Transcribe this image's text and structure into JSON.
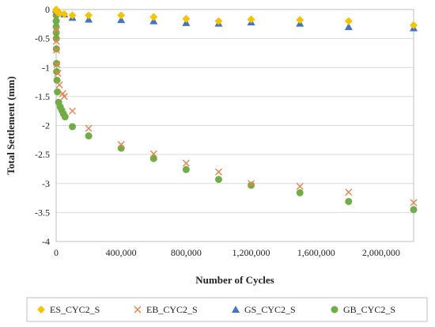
{
  "chart_data": {
    "type": "scatter",
    "xlabel": "Number of Cycles",
    "ylabel": "Total Settlement (mm)",
    "xlim": [
      0,
      2200000
    ],
    "ylim": [
      -4,
      0
    ],
    "x_ticks": [
      0,
      400000,
      800000,
      1200000,
      1600000,
      2000000
    ],
    "x_tick_labels": [
      "0",
      "400,000",
      "800,000",
      "1,200,000",
      "1,600,000",
      "2,000,000"
    ],
    "y_ticks": [
      0,
      -0.5,
      -1,
      -1.5,
      -2,
      -2.5,
      -3,
      -3.5,
      -4
    ],
    "y_tick_labels": [
      "0",
      "-0.5",
      "-1",
      "-1.5",
      "-2",
      "-2.5",
      "-3",
      "-3.5",
      "-4"
    ],
    "grid": "horizontal",
    "legend_position": "bottom",
    "series": [
      {
        "name": "ES_CYC2_S",
        "marker": "diamond",
        "color": "#f5c400",
        "points": [
          [
            0,
            0
          ],
          [
            1000,
            -0.02
          ],
          [
            2000,
            -0.03
          ],
          [
            5000,
            -0.04
          ],
          [
            10000,
            -0.05
          ],
          [
            20000,
            -0.06
          ],
          [
            50000,
            -0.08
          ],
          [
            100000,
            -0.1
          ],
          [
            200000,
            -0.1
          ],
          [
            400000,
            -0.1
          ],
          [
            600000,
            -0.13
          ],
          [
            800000,
            -0.16
          ],
          [
            1000000,
            -0.2
          ],
          [
            1200000,
            -0.17
          ],
          [
            1500000,
            -0.18
          ],
          [
            1800000,
            -0.2
          ],
          [
            2200000,
            -0.27
          ]
        ]
      },
      {
        "name": "EB_CYC2_S",
        "marker": "x",
        "color": "#e8844a",
        "points": [
          [
            0,
            -0.05
          ],
          [
            500,
            -0.35
          ],
          [
            1000,
            -0.55
          ],
          [
            2000,
            -0.7
          ],
          [
            5000,
            -0.95
          ],
          [
            10000,
            -1.1
          ],
          [
            20000,
            -1.3
          ],
          [
            40000,
            -1.45
          ],
          [
            50000,
            -1.5
          ],
          [
            100000,
            -1.75
          ],
          [
            200000,
            -2.05
          ],
          [
            400000,
            -2.33
          ],
          [
            600000,
            -2.49
          ],
          [
            800000,
            -2.65
          ],
          [
            1000000,
            -2.8
          ],
          [
            1200000,
            -3.0
          ],
          [
            1500000,
            -3.05
          ],
          [
            1800000,
            -3.15
          ],
          [
            2200000,
            -3.33
          ]
        ]
      },
      {
        "name": "GS_CYC2_S",
        "marker": "triangle",
        "color": "#4472c4",
        "points": [
          [
            0,
            0
          ],
          [
            5000,
            -0.02
          ],
          [
            10000,
            -0.03
          ],
          [
            20000,
            -0.05
          ],
          [
            50000,
            -0.08
          ],
          [
            100000,
            -0.14
          ],
          [
            200000,
            -0.17
          ],
          [
            400000,
            -0.18
          ],
          [
            600000,
            -0.2
          ],
          [
            800000,
            -0.23
          ],
          [
            1000000,
            -0.24
          ],
          [
            1200000,
            -0.22
          ],
          [
            1500000,
            -0.24
          ],
          [
            1800000,
            -0.3
          ],
          [
            2200000,
            -0.32
          ]
        ]
      },
      {
        "name": "GB_CYC2_S",
        "marker": "circle",
        "color": "#70ad47",
        "points": [
          [
            0,
            -0.1
          ],
          [
            200,
            -0.2
          ],
          [
            400,
            -0.3
          ],
          [
            600,
            -0.4
          ],
          [
            1000,
            -0.5
          ],
          [
            1500,
            -0.68
          ],
          [
            2000,
            -0.93
          ],
          [
            3000,
            -1.07
          ],
          [
            5000,
            -1.22
          ],
          [
            8000,
            -1.42
          ],
          [
            15000,
            -1.6
          ],
          [
            25000,
            -1.68
          ],
          [
            35000,
            -1.74
          ],
          [
            45000,
            -1.8
          ],
          [
            55000,
            -1.85
          ],
          [
            100000,
            -2.02
          ],
          [
            200000,
            -2.18
          ],
          [
            400000,
            -2.39
          ],
          [
            600000,
            -2.57
          ],
          [
            800000,
            -2.76
          ],
          [
            1000000,
            -2.93
          ],
          [
            1200000,
            -3.03
          ],
          [
            1500000,
            -3.16
          ],
          [
            1800000,
            -3.31
          ],
          [
            2200000,
            -3.45
          ]
        ]
      }
    ]
  }
}
